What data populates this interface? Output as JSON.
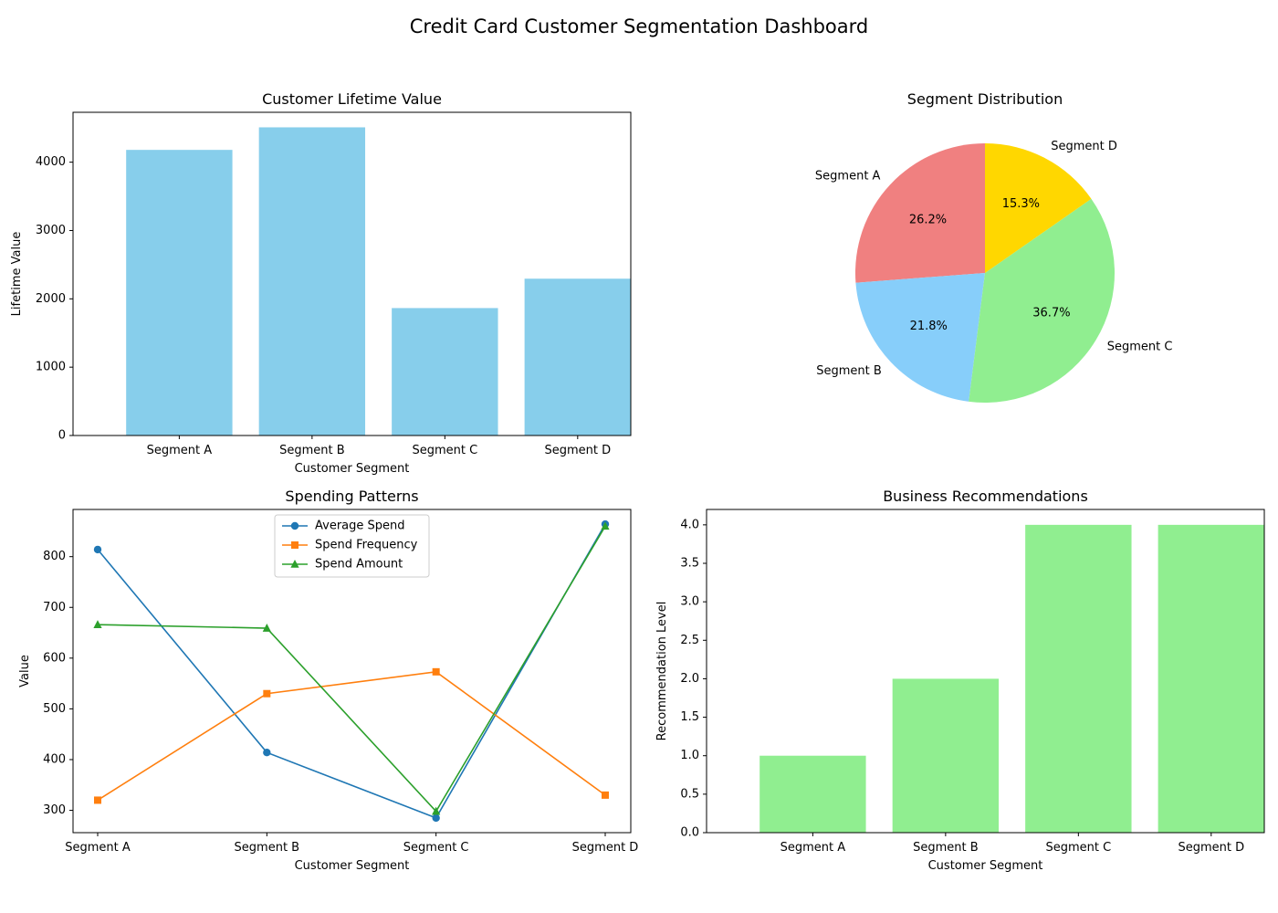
{
  "title": "Credit Card Customer Segmentation Dashboard",
  "chart_data": [
    {
      "type": "bar",
      "title": "Customer Lifetime Value",
      "xlabel": "Customer Segment",
      "ylabel": "Lifetime Value",
      "categories": [
        "Segment A",
        "Segment B",
        "Segment C",
        "Segment D"
      ],
      "values": [
        4180,
        4510,
        1865,
        2295
      ],
      "ylim": [
        0,
        4730
      ],
      "yticks": [
        0,
        1000,
        2000,
        3000,
        4000
      ],
      "color": "#87CEEB",
      "grid": false
    },
    {
      "type": "pie",
      "title": "Segment Distribution",
      "labels": [
        "Segment A",
        "Segment B",
        "Segment C",
        "Segment D"
      ],
      "values": [
        26.2,
        21.8,
        36.7,
        15.3
      ],
      "pct_labels": [
        "26.2%",
        "21.8%",
        "36.7%",
        "15.3%"
      ],
      "colors": [
        "#F08080",
        "#87CEFA",
        "#90EE90",
        "#FFD700"
      ]
    },
    {
      "type": "line",
      "title": "Spending Patterns",
      "xlabel": "Customer Segment",
      "ylabel": "Value",
      "categories": [
        "Segment A",
        "Segment B",
        "Segment C",
        "Segment D"
      ],
      "series": [
        {
          "name": "Average Spend",
          "values": [
            814,
            414,
            285,
            864
          ],
          "color": "#1f77b4",
          "marker": "circle"
        },
        {
          "name": "Spend Frequency",
          "values": [
            320,
            530,
            573,
            330
          ],
          "color": "#ff7f0e",
          "marker": "square"
        },
        {
          "name": "Spend Amount",
          "values": [
            666,
            659,
            298,
            860
          ],
          "color": "#2ca02c",
          "marker": "triangle"
        }
      ],
      "ylim": [
        256,
        893
      ],
      "yticks": [
        300,
        400,
        500,
        600,
        700,
        800
      ],
      "legend": "top-center",
      "grid": false
    },
    {
      "type": "bar",
      "title": "Business Recommendations",
      "xlabel": "Customer Segment",
      "ylabel": "Recommendation Level",
      "categories": [
        "Segment A",
        "Segment B",
        "Segment C",
        "Segment D"
      ],
      "values": [
        1.0,
        2.0,
        4.0,
        4.0
      ],
      "ylim": [
        0,
        4.2
      ],
      "yticks": [
        0.0,
        0.5,
        1.0,
        1.5,
        2.0,
        2.5,
        3.0,
        3.5,
        4.0
      ],
      "tick_decimals": 1,
      "color": "#90EE90",
      "grid": false
    }
  ]
}
